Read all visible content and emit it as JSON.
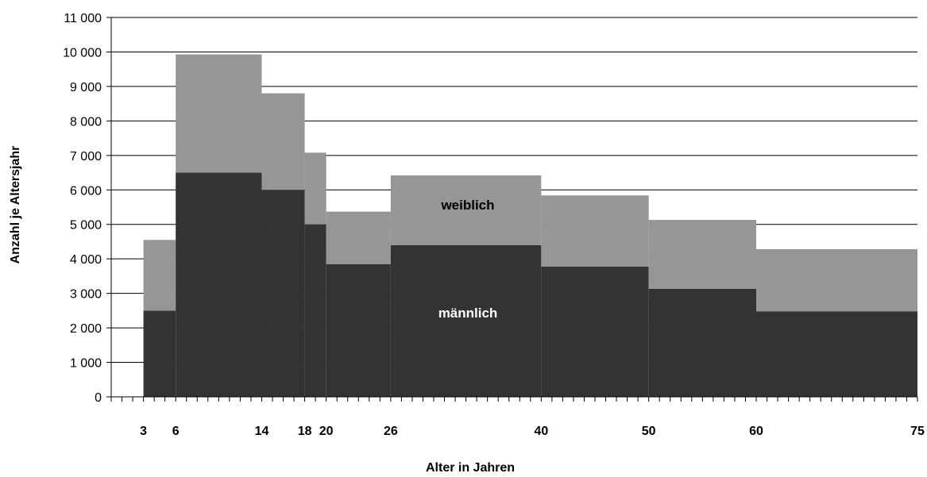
{
  "chart_data": {
    "type": "area",
    "xlabel": "Alter in Jahren",
    "ylabel": "Anzahl je Altersjahr",
    "xlim": [
      0,
      75
    ],
    "ylim": [
      0,
      11000
    ],
    "y_ticks": [
      0,
      1000,
      2000,
      3000,
      4000,
      5000,
      6000,
      7000,
      8000,
      9000,
      10000,
      11000
    ],
    "y_tick_labels": [
      "0",
      "1 000",
      "2 000",
      "3 000",
      "4 000",
      "5 000",
      "6 000",
      "7 000",
      "8 000",
      "9 000",
      "10 000",
      "11 000"
    ],
    "x_ticks": [
      3,
      6,
      14,
      18,
      20,
      26,
      40,
      50,
      60,
      75
    ],
    "x_tick_labels": [
      "3",
      "6",
      "14",
      "18",
      "20",
      "26",
      "40",
      "50",
      "60",
      "75"
    ],
    "grid": true,
    "age_groups": [
      {
        "from": 3,
        "to": 6
      },
      {
        "from": 6,
        "to": 14
      },
      {
        "from": 14,
        "to": 18
      },
      {
        "from": 18,
        "to": 20
      },
      {
        "from": 20,
        "to": 26
      },
      {
        "from": 26,
        "to": 40
      },
      {
        "from": 40,
        "to": 50
      },
      {
        "from": 50,
        "to": 60
      },
      {
        "from": 60,
        "to": 75
      }
    ],
    "series": [
      {
        "name": "männlich",
        "values": [
          2500,
          6500,
          6000,
          5000,
          3850,
          4400,
          3780,
          3130,
          2480
        ],
        "color": "#333333"
      },
      {
        "name": "weiblich",
        "values": [
          2050,
          3430,
          2800,
          2080,
          1520,
          2020,
          2060,
          2000,
          1800
        ],
        "color": "#969696"
      }
    ]
  }
}
